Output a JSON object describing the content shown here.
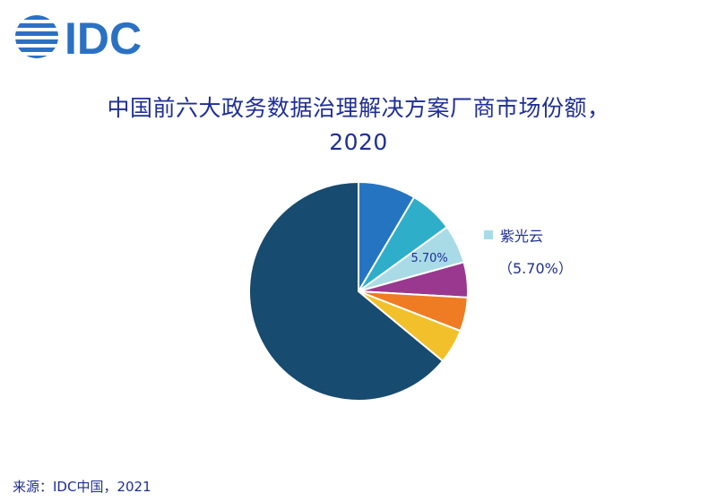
{
  "brand": {
    "logo_text": "IDC",
    "logo_color": "#2a71c4"
  },
  "title": {
    "line1": "中国前六大政务数据治理解决方案厂商市场份额，",
    "line2": "2020"
  },
  "chart_data": {
    "type": "pie",
    "start_angle": 0,
    "direction": "clockwise",
    "slices": [
      {
        "label": "",
        "value": 8.5,
        "color": "#2574c2"
      },
      {
        "label": "",
        "value": 6.5,
        "color": "#2eaec9"
      },
      {
        "label": "紫光云",
        "value": 5.7,
        "value_label": "5.70%",
        "color": "#a8dbe6"
      },
      {
        "label": "",
        "value": 5.2,
        "color": "#99388e"
      },
      {
        "label": "",
        "value": 5.0,
        "color": "#ef7b23"
      },
      {
        "label": "",
        "value": 5.1,
        "color": "#f2c02a"
      },
      {
        "label": "",
        "value": 64.0,
        "color": "#174b6f"
      }
    ],
    "legend": {
      "placement": "right",
      "name": "紫光云",
      "value_text": "（5.70%）",
      "color": "#a8dbe6"
    }
  },
  "source": {
    "text": "来源：IDC中国，2021"
  }
}
